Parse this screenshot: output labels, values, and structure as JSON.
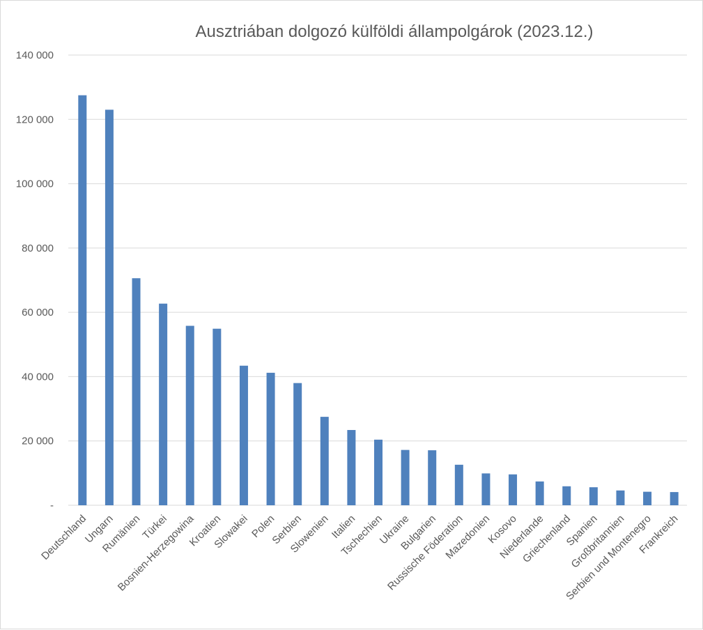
{
  "chart_data": {
    "type": "bar",
    "title": "Ausztriában dolgozó külföldi állampolgárok (2023.12.)",
    "xlabel": "",
    "ylabel": "",
    "ylim": [
      0,
      140000
    ],
    "yticks": [
      {
        "value": 0,
        "label": "-"
      },
      {
        "value": 20000,
        "label": "20 000"
      },
      {
        "value": 40000,
        "label": "40 000"
      },
      {
        "value": 60000,
        "label": "60 000"
      },
      {
        "value": 80000,
        "label": "80 000"
      },
      {
        "value": 100000,
        "label": "100 000"
      },
      {
        "value": 120000,
        "label": "120 000"
      },
      {
        "value": 140000,
        "label": "140 000"
      }
    ],
    "grid": true,
    "legend": "none",
    "bar_color": "#4f81bd",
    "categories": [
      "Deutschland",
      "Ungarn",
      "Rumänien",
      "Türkei",
      "Bosnien-Herzegowina",
      "Kroatien",
      "Slowakei",
      "Polen",
      "Serbien",
      "Slowenien",
      "Italien",
      "Tschechien",
      "Ukraine",
      "Bulgarien",
      "Russische Föderation",
      "Mazedonien",
      "Kosovo",
      "Niederlande",
      "Griechenland",
      "Spanien",
      "Großbritannien",
      "Serbien und Montenegro",
      "Frankreich"
    ],
    "values": [
      127500,
      123000,
      70600,
      62700,
      55800,
      54900,
      43400,
      41200,
      38000,
      27500,
      23400,
      20400,
      17200,
      17100,
      12600,
      9900,
      9600,
      7400,
      5900,
      5600,
      4600,
      4200,
      4100
    ]
  }
}
